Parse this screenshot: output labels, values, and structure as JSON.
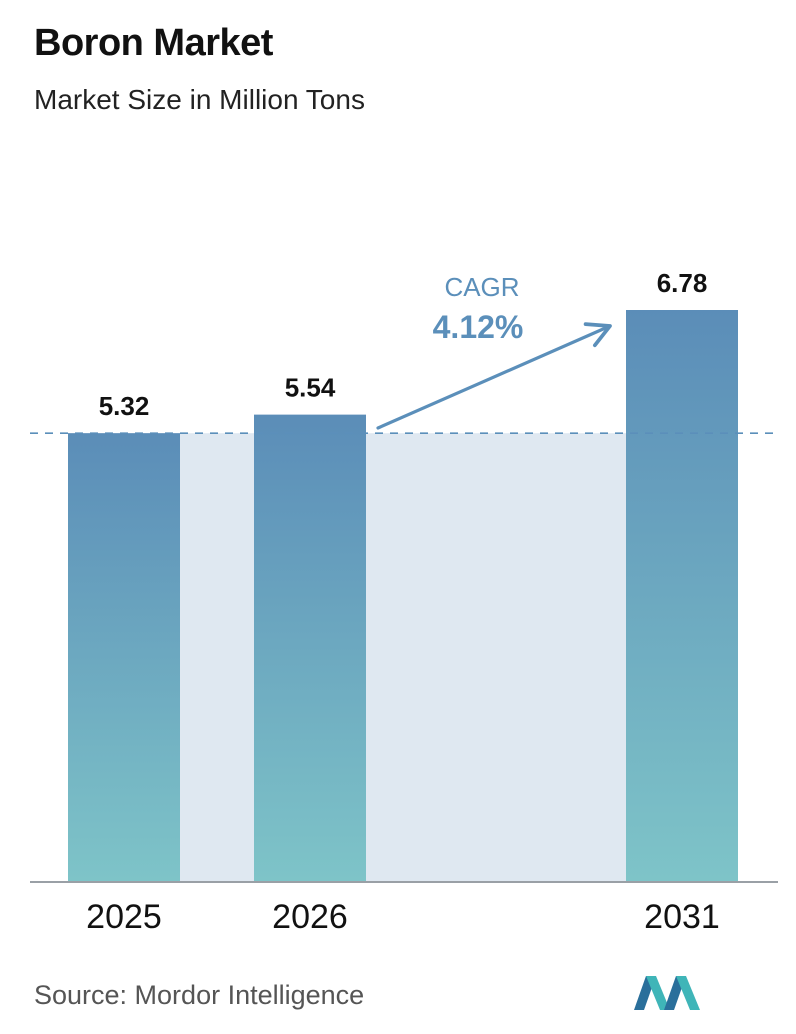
{
  "title": "Boron Market",
  "subtitle": "Market Size in Million Tons",
  "source": "Source:  Mordor Intelligence",
  "cagr": {
    "label": "CAGR",
    "value": "4.12%"
  },
  "colors": {
    "bar_top": "#5b8db8",
    "bar_bottom": "#7ec4c8",
    "shade": "#dfe8f1",
    "accent": "#5b8fba",
    "axis": "#9aa0a6",
    "text": "#111111"
  },
  "chart_data": {
    "type": "bar",
    "categories": [
      "2025",
      "2026",
      "2031"
    ],
    "values": [
      5.32,
      5.54,
      6.78
    ],
    "value_labels": [
      "5.32",
      "5.54",
      "6.78"
    ],
    "ylim": [
      0,
      6.78
    ],
    "reference_line": 5.32,
    "xlabel": "",
    "ylabel": "",
    "grid": false,
    "legend": "none"
  }
}
